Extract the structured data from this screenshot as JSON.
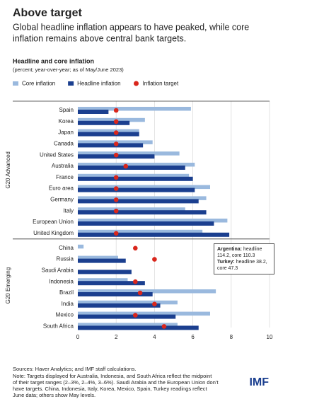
{
  "header": {
    "title": "Above target",
    "subtitle": [
      "Global headline inflation appears to have peaked, while core",
      "inflation remains above central bank targets."
    ]
  },
  "chart_data": {
    "type": "bar",
    "orientation": "horizontal",
    "title": "Headline and core inflation",
    "subtitle": "(percent; year-over-year; as of May/June 2023)",
    "groups": [
      {
        "name": "G20 Advanced",
        "categories": [
          "Spain",
          "Korea",
          "Japan",
          "Canada",
          "United States",
          "Australia",
          "France",
          "Euro area",
          "Germany",
          "Italy",
          "European Union",
          "United Kingdom"
        ]
      },
      {
        "name": "G20 Emerging",
        "categories": [
          "China",
          "Russia",
          "Saudi Arabia",
          "Indonesia",
          "Brazil",
          "India",
          "Mexico",
          "South Africa"
        ]
      }
    ],
    "series": [
      {
        "name": "Core inflation",
        "color": "#9ab9de",
        "style": "bar",
        "values": [
          5.9,
          3.5,
          3.2,
          3.9,
          5.3,
          6.1,
          5.8,
          6.9,
          6.7,
          5.6,
          7.8,
          6.5,
          0.3,
          2.1,
          null,
          2.6,
          7.2,
          5.2,
          6.9,
          5.2
        ]
      },
      {
        "name": "Headline inflation",
        "color": "#1b3f8f",
        "style": "bar",
        "values": [
          1.6,
          2.7,
          3.2,
          3.4,
          4.0,
          5.6,
          6.0,
          6.1,
          6.3,
          6.7,
          7.1,
          7.9,
          0.0,
          2.5,
          2.8,
          3.5,
          3.9,
          4.3,
          5.1,
          6.3
        ]
      },
      {
        "name": "Inflation target",
        "color": "#d9261c",
        "style": "dot",
        "values": [
          2,
          2,
          2,
          2,
          2,
          2.5,
          2,
          2,
          2,
          2,
          null,
          2,
          3,
          4,
          null,
          3,
          3.25,
          4,
          3,
          4.5
        ]
      }
    ],
    "xlim": [
      0,
      10
    ],
    "xticks": [
      0,
      2,
      4,
      6,
      8,
      10
    ],
    "grid": true,
    "annotation": [
      {
        "bold": "Argentina:",
        "text": "headline 114.2, core 110.3"
      },
      {
        "bold": "Turkey:",
        "text": "headline 38.2, core 47.3"
      }
    ]
  },
  "notes": [
    "Sources: Haver Analytics; and IMF staff calculations.",
    "Note: Targets displayed for Australia, Indonesia, and South Africa reflect the midpoint",
    "of their target ranges (2–3%, 2–4%, 3–6%). Saudi Arabia and the European Union don’t",
    "have targets. China, Indonesia, Italy, Korea, Mexico, Spain, Turkey readings reflect",
    "June data; others show May levels."
  ],
  "logo": "IMF"
}
